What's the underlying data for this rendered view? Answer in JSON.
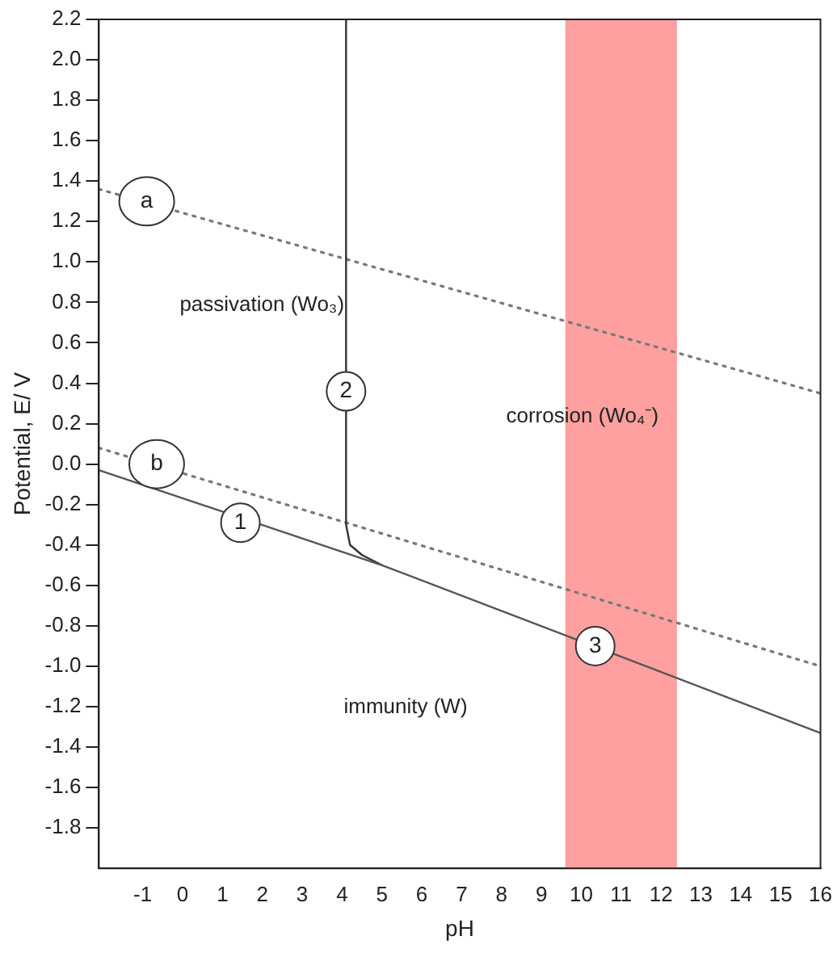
{
  "chart_data": {
    "type": "line",
    "xlabel": "pH",
    "ylabel": "Potential, E/ V",
    "xlim": [
      -2.1,
      16
    ],
    "ylim": [
      -2.0,
      2.2
    ],
    "xticks": [
      -1,
      0,
      1,
      2,
      3,
      4,
      5,
      6,
      7,
      8,
      9,
      10,
      11,
      12,
      13,
      14,
      15,
      16
    ],
    "yticks": [
      {
        "value": -1.8,
        "label": "-1.8"
      },
      {
        "value": -1.6,
        "label": "-1.6"
      },
      {
        "value": -1.4,
        "label": "-1.4"
      },
      {
        "value": -1.2,
        "label": "-1.2"
      },
      {
        "value": -1,
        "label": "-1.0"
      },
      {
        "value": -0.8,
        "label": "-0.8"
      },
      {
        "value": -0.6,
        "label": "-0.6"
      },
      {
        "value": -0.4,
        "label": "-0.4"
      },
      {
        "value": -0.2,
        "label": "-0.2"
      },
      {
        "value": 0,
        "label": "0.0"
      },
      {
        "value": 0.2,
        "label": "0.2"
      },
      {
        "value": 0.4,
        "label": "0.4"
      },
      {
        "value": 0.6,
        "label": "0.6"
      },
      {
        "value": 0.8,
        "label": "0.8"
      },
      {
        "value": 1,
        "label": "1.0"
      },
      {
        "value": 1.2,
        "label": "1.2"
      },
      {
        "value": 1.4,
        "label": "1.4"
      },
      {
        "value": 1.6,
        "label": "1.6"
      },
      {
        "value": 1.8,
        "label": "1.8"
      },
      {
        "value": 2,
        "label": "2.0"
      },
      {
        "value": 2.2,
        "label": "2.2"
      }
    ],
    "series": [
      {
        "color": "#555555",
        "line_style": "solid",
        "x": [
          -2.1,
          5,
          16
        ],
        "values": [
          -0.03,
          -0.5,
          -1.33
        ]
      },
      {
        "color": "#333333",
        "line_style": "solid",
        "x": [
          4.1,
          4.1,
          4.2,
          4.5,
          5
        ],
        "values": [
          2.2,
          -0.3,
          -0.4,
          -0.45,
          -0.5
        ]
      },
      {
        "color": "#777777",
        "line_style": "dotted",
        "x": [
          -2.1,
          16
        ],
        "values": [
          1.36,
          0.35
        ]
      },
      {
        "color": "#777777",
        "line_style": "dotted",
        "x": [
          -2.1,
          16
        ],
        "values": [
          0.08,
          -1.0
        ]
      }
    ],
    "bands": [
      {
        "axis": "x",
        "from": 9.6,
        "to": 12.4,
        "color": "#ff8080"
      }
    ],
    "annotations": [
      {
        "text": "a",
        "x": -0.9,
        "y": 1.3
      },
      {
        "text": "b",
        "x": -0.65,
        "y": 0.0
      },
      {
        "text": "1",
        "x": 1.45,
        "y": -0.29
      },
      {
        "text": "2",
        "x": 4.1,
        "y": 0.36
      },
      {
        "text": "3",
        "x": 10.35,
        "y": -0.9
      },
      "passivation (Wo₃)",
      "corrosion (Wo₄⁻)",
      "immunity (W)"
    ]
  }
}
